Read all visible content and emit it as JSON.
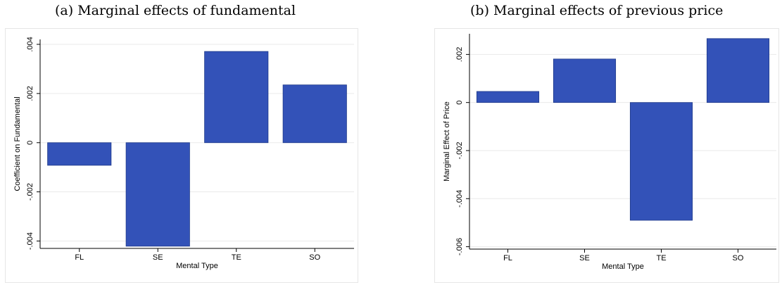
{
  "panels": [
    {
      "caption": "(a) Marginal effects of fundamental",
      "chart_data": {
        "type": "bar",
        "categories": [
          "FL",
          "SE",
          "TE",
          "SO"
        ],
        "values": [
          -0.00092,
          -0.00421,
          0.00371,
          0.00235
        ],
        "xlabel": "Mental Type",
        "ylabel": "Coefficient on Fundamental",
        "yticks": [
          -0.004,
          -0.002,
          0,
          0.002,
          0.004
        ],
        "ytick_labels": [
          "-.004",
          "-.002",
          "0",
          ".002",
          ".004"
        ],
        "ylim": [
          -0.0043,
          0.0042
        ],
        "grid": true,
        "bar_color": "#3352b8"
      }
    },
    {
      "caption": "(b) Marginal effects of previous price",
      "chart_data": {
        "type": "bar",
        "categories": [
          "FL",
          "SE",
          "TE",
          "SO"
        ],
        "values": [
          0.00046,
          0.00181,
          -0.0049,
          0.00266
        ],
        "xlabel": "Mental Type",
        "ylabel": "Marginal Effect of Price",
        "yticks": [
          -0.006,
          -0.004,
          -0.002,
          0,
          0.002
        ],
        "ytick_labels": [
          "-.006",
          "-.004",
          "-.002",
          "0",
          ".002"
        ],
        "ylim": [
          -0.0061,
          0.00286
        ],
        "grid": true,
        "bar_color": "#3352b8"
      }
    }
  ]
}
